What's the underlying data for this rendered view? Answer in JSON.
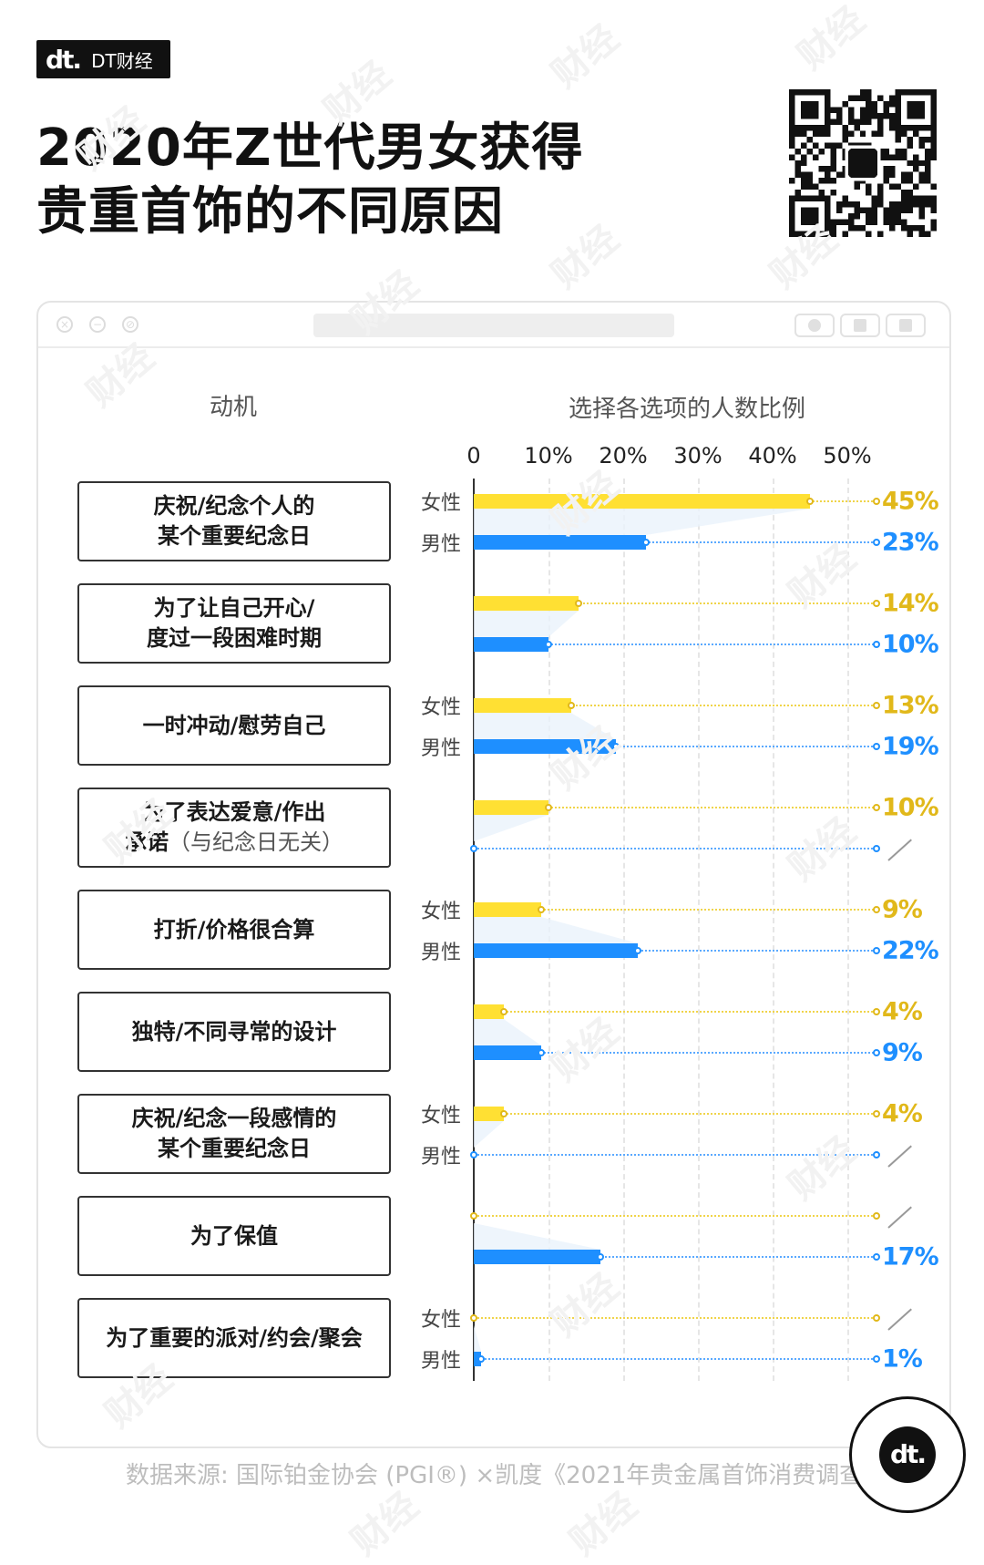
{
  "brand": {
    "mark": "dt.",
    "name": "DT财经"
  },
  "title_line1": "2020年Z世代男女获得",
  "title_line2": "贵重首饰的不同原因",
  "watermark": "财经",
  "chart_data": {
    "type": "bar",
    "title": "2020年Z世代男女获得贵重首饰的不同原因",
    "category_header": "动机",
    "value_header": "选择各选项的人数比例",
    "xlim": [
      0,
      50
    ],
    "x_ticks": [
      "0",
      "10%",
      "20%",
      "30%",
      "40%",
      "50%"
    ],
    "x_tick_values": [
      0,
      10,
      20,
      30,
      40,
      50
    ],
    "series_labels": {
      "female": "女性",
      "male": "男性"
    },
    "categories": [
      {
        "label1": "庆祝/纪念个人的",
        "label2": "某个重要纪念日",
        "note": "",
        "female": 45,
        "male": 23,
        "female_label": "45%",
        "male_label": "23%",
        "show_gender": true
      },
      {
        "label1": "为了让自己开心/",
        "label2": "度过一段困难时期",
        "note": "",
        "female": 14,
        "male": 10,
        "female_label": "14%",
        "male_label": "10%",
        "show_gender": false
      },
      {
        "label1": "一时冲动/慰劳自己",
        "label2": "",
        "note": "",
        "female": 13,
        "male": 19,
        "female_label": "13%",
        "male_label": "19%",
        "show_gender": true
      },
      {
        "label1": "为了表达爱意/作出",
        "label2": "承诺",
        "note": "（与纪念日无关）",
        "female": 10,
        "male": null,
        "female_label": "10%",
        "male_label": "",
        "show_gender": false
      },
      {
        "label1": "打折/价格很合算",
        "label2": "",
        "note": "",
        "female": 9,
        "male": 22,
        "female_label": "9%",
        "male_label": "22%",
        "show_gender": true
      },
      {
        "label1": "独特/不同寻常的设计",
        "label2": "",
        "note": "",
        "female": 4,
        "male": 9,
        "female_label": "4%",
        "male_label": "9%",
        "show_gender": false
      },
      {
        "label1": "庆祝/纪念一段感情的",
        "label2": "某个重要纪念日",
        "note": "",
        "female": 4,
        "male": null,
        "female_label": "4%",
        "male_label": "",
        "show_gender": true
      },
      {
        "label1": "为了保值",
        "label2": "",
        "note": "",
        "female": null,
        "male": 17,
        "female_label": "",
        "male_label": "17%",
        "show_gender": false
      },
      {
        "label1": "为了重要的派对/约会/聚会",
        "label2": "",
        "note": "",
        "female": null,
        "male": 1,
        "female_label": "",
        "male_label": "1%",
        "show_gender": true
      }
    ],
    "colors": {
      "female": "#ffe033",
      "female_text": "#e1b81a",
      "male": "#1e8fff"
    }
  },
  "source": "数据来源: 国际铂金协会 (PGI®) ×凯度《2021年贵金属首饰消费调查》"
}
